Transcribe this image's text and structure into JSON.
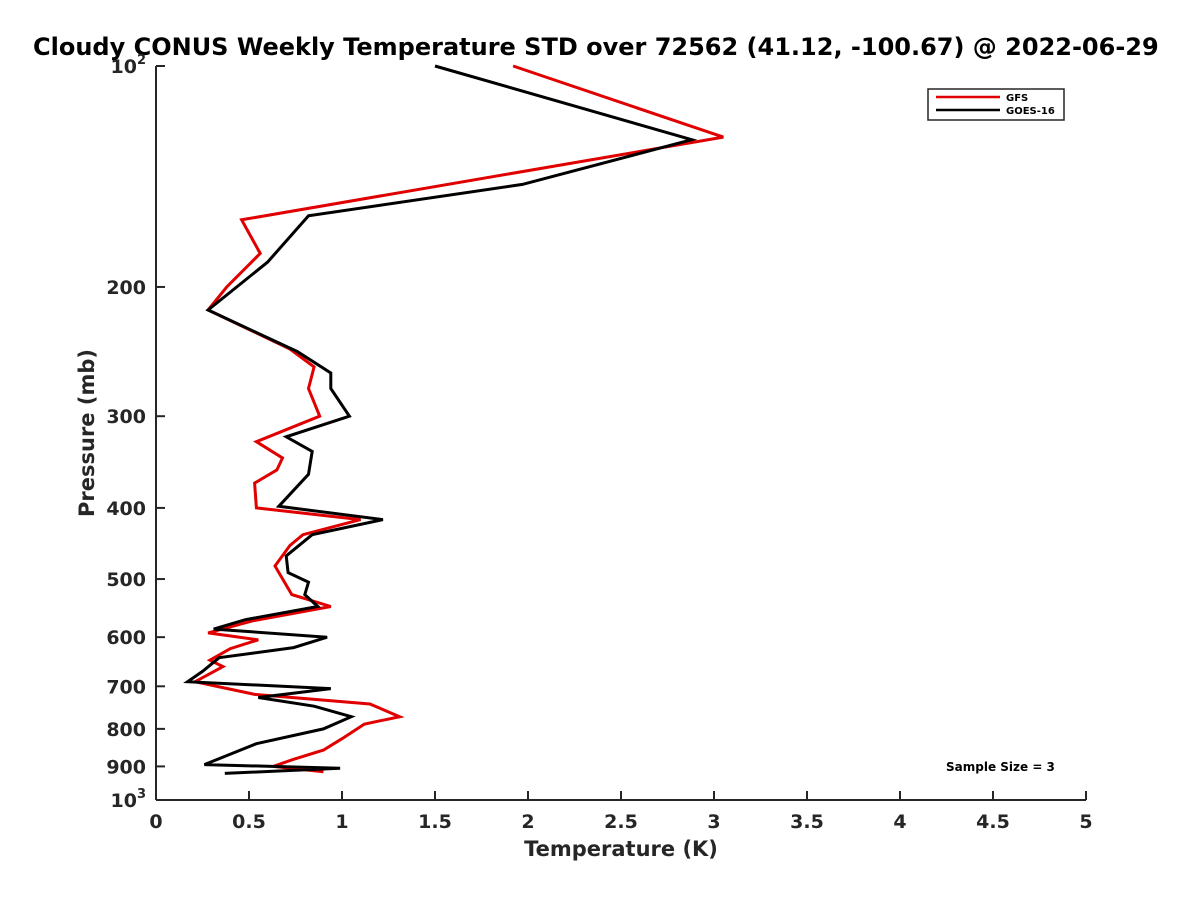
{
  "chart_data": {
    "type": "line",
    "title": "Cloudy CONUS Weekly Temperature STD over 72562 (41.12, -100.67) @ 2022-06-29",
    "xlabel": "Temperature (K)",
    "ylabel": "Pressure (mb)",
    "xlim": [
      0,
      5
    ],
    "ylim": [
      100,
      1000
    ],
    "y_scale": "log",
    "y_reversed": true,
    "x_ticks": [
      "0",
      "0.5",
      "1",
      "1.5",
      "2",
      "2.5",
      "3",
      "3.5",
      "4",
      "4.5",
      "5"
    ],
    "y_ticks": [
      {
        "value": 100,
        "base": "10",
        "exp": "2"
      },
      {
        "value": 200,
        "label": "200"
      },
      {
        "value": 300,
        "label": "300"
      },
      {
        "value": 400,
        "label": "400"
      },
      {
        "value": 500,
        "label": "500"
      },
      {
        "value": 600,
        "label": "600"
      },
      {
        "value": 700,
        "label": "700"
      },
      {
        "value": 800,
        "label": "800"
      },
      {
        "value": 900,
        "label": "900"
      },
      {
        "value": 1000,
        "base": "10",
        "exp": "3"
      }
    ],
    "grid": false,
    "legend_position": "top-right",
    "annotation": "Sample Size = 3",
    "series": [
      {
        "name": "GFS",
        "color": "#e00000",
        "points": [
          [
            1.92,
            100
          ],
          [
            3.05,
            125
          ],
          [
            0.46,
            162
          ],
          [
            0.56,
            180
          ],
          [
            0.38,
            200
          ],
          [
            0.28,
            215
          ],
          [
            0.72,
            243
          ],
          [
            0.85,
            257
          ],
          [
            0.82,
            275
          ],
          [
            0.88,
            300
          ],
          [
            0.54,
            325
          ],
          [
            0.68,
            342
          ],
          [
            0.65,
            355
          ],
          [
            0.53,
            370
          ],
          [
            0.54,
            400
          ],
          [
            1.1,
            415
          ],
          [
            0.79,
            435
          ],
          [
            0.72,
            450
          ],
          [
            0.64,
            480
          ],
          [
            0.73,
            525
          ],
          [
            0.94,
            545
          ],
          [
            0.52,
            570
          ],
          [
            0.28,
            592
          ],
          [
            0.55,
            605
          ],
          [
            0.4,
            622
          ],
          [
            0.29,
            645
          ],
          [
            0.36,
            658
          ],
          [
            0.21,
            690
          ],
          [
            0.53,
            718
          ],
          [
            1.15,
            740
          ],
          [
            1.31,
            770
          ],
          [
            1.12,
            788
          ],
          [
            1.0,
            825
          ],
          [
            0.9,
            855
          ],
          [
            0.74,
            880
          ],
          [
            0.63,
            900
          ],
          [
            0.9,
            915
          ]
        ]
      },
      {
        "name": "GOES-16",
        "color": "#000000",
        "points": [
          [
            1.5,
            100
          ],
          [
            2.88,
            126
          ],
          [
            1.97,
            145
          ],
          [
            0.82,
            160
          ],
          [
            0.6,
            185
          ],
          [
            0.28,
            215
          ],
          [
            0.76,
            245
          ],
          [
            0.94,
            262
          ],
          [
            0.94,
            275
          ],
          [
            1.04,
            300
          ],
          [
            0.7,
            320
          ],
          [
            0.84,
            335
          ],
          [
            0.82,
            360
          ],
          [
            0.66,
            398
          ],
          [
            1.22,
            415
          ],
          [
            0.84,
            435
          ],
          [
            0.7,
            465
          ],
          [
            0.71,
            490
          ],
          [
            0.82,
            505
          ],
          [
            0.8,
            525
          ],
          [
            0.87,
            545
          ],
          [
            0.48,
            568
          ],
          [
            0.31,
            585
          ],
          [
            0.92,
            600
          ],
          [
            0.74,
            620
          ],
          [
            0.34,
            640
          ],
          [
            0.25,
            668
          ],
          [
            0.17,
            690
          ],
          [
            0.94,
            705
          ],
          [
            0.55,
            725
          ],
          [
            0.85,
            745
          ],
          [
            1.05,
            770
          ],
          [
            0.9,
            800
          ],
          [
            0.54,
            838
          ],
          [
            0.38,
            870
          ],
          [
            0.26,
            895
          ],
          [
            0.99,
            905
          ],
          [
            0.37,
            920
          ]
        ]
      }
    ]
  }
}
